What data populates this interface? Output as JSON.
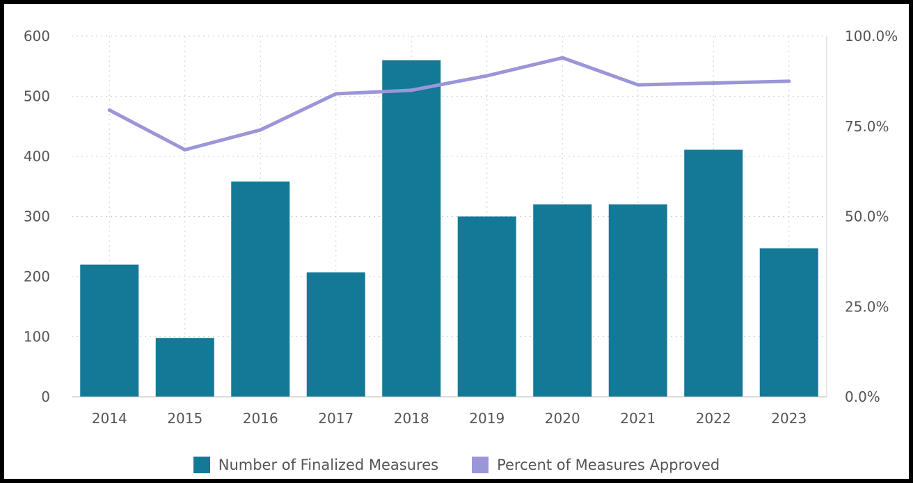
{
  "chart_data": {
    "type": "bar",
    "categories": [
      "2014",
      "2015",
      "2016",
      "2017",
      "2018",
      "2019",
      "2020",
      "2021",
      "2022",
      "2023"
    ],
    "series": [
      {
        "name": "Number of Finalized Measures",
        "type": "bar",
        "axis": "left",
        "color": "#137996",
        "values": [
          220,
          98,
          358,
          207,
          560,
          300,
          320,
          320,
          411,
          247
        ]
      },
      {
        "name": "Percent of Measures Approved",
        "type": "line",
        "axis": "right",
        "color": "#9b96d8",
        "values": [
          79.5,
          68.5,
          74,
          84,
          85,
          89,
          94,
          86.5,
          87,
          87.5
        ]
      }
    ],
    "y_left": {
      "ylim": [
        0,
        600
      ],
      "ticks": [
        "0",
        "100",
        "200",
        "300",
        "400",
        "500",
        "600"
      ]
    },
    "y_right": {
      "ylim": [
        0,
        100
      ],
      "ticks": [
        "0.0%",
        "25.0%",
        "50.0%",
        "75.0%",
        "100.0%"
      ]
    },
    "grid": true,
    "legend_position": "bottom"
  }
}
